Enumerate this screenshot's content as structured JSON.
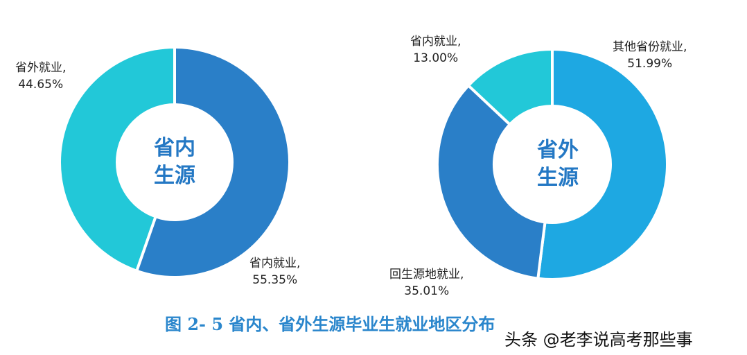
{
  "chart_data": [
    {
      "type": "pie",
      "donut": true,
      "center_label": [
        "省内",
        "生源"
      ],
      "slices": [
        {
          "label": "省内就业,",
          "value": 55.35,
          "value_text": "55.35%",
          "color": "#2a7fc8"
        },
        {
          "label": "省外就业,",
          "value": 44.65,
          "value_text": "44.65%",
          "color": "#22c8d8"
        }
      ]
    },
    {
      "type": "pie",
      "donut": true,
      "center_label": [
        "省外",
        "生源"
      ],
      "slices": [
        {
          "label": "其他省份就业,",
          "value": 51.99,
          "value_text": "51.99%",
          "color": "#1ea8e2"
        },
        {
          "label": "回生源地就业,",
          "value": 35.01,
          "value_text": "35.01%",
          "color": "#2a7fc8"
        },
        {
          "label": "省内就业,",
          "value": 13.0,
          "value_text": "13.00%",
          "color": "#22c8d8"
        }
      ]
    }
  ],
  "caption": "图 2- 5  省内、省外生源毕业生就业地区分布",
  "watermark": "头条 @老李说高考那些事"
}
